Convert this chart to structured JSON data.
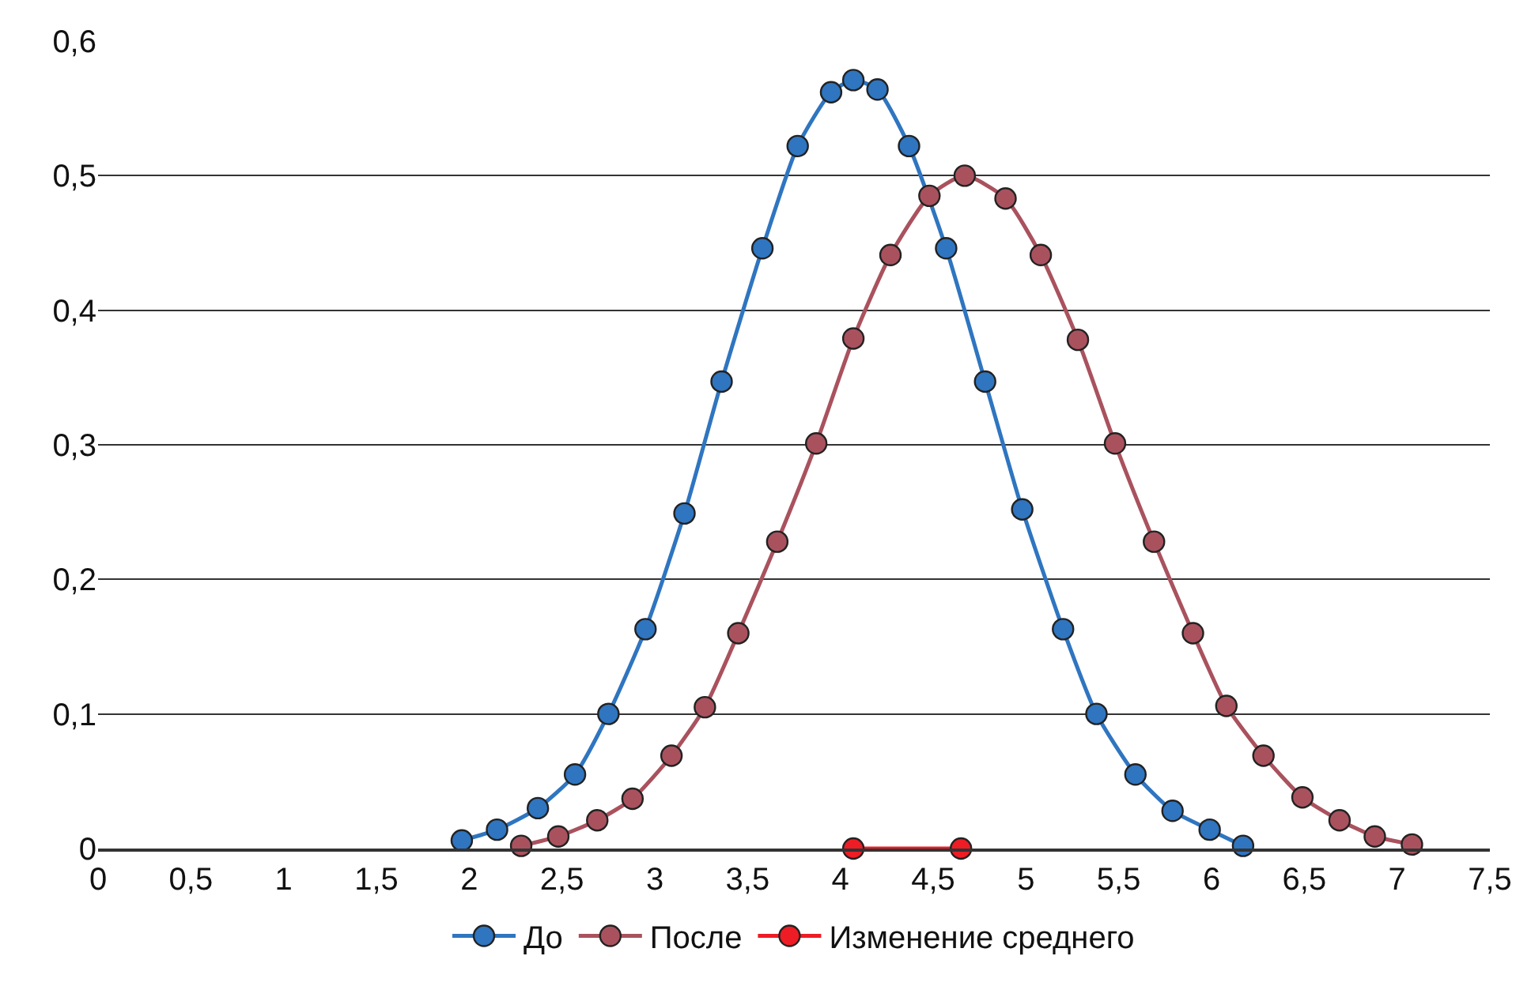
{
  "chart_data": {
    "type": "line",
    "xlim": [
      0,
      7.5
    ],
    "ylim": [
      0,
      0.6
    ],
    "xticks": [
      0,
      {
        "value": 0.5,
        "label": "0,5"
      },
      1,
      {
        "value": 1.5,
        "label": "1,5"
      },
      2,
      {
        "value": 2.5,
        "label": "2,5"
      },
      3,
      {
        "value": 3.5,
        "label": "3,5"
      },
      4,
      {
        "value": 4.5,
        "label": "4,5"
      },
      5,
      {
        "value": 5.5,
        "label": "5,5"
      },
      6,
      {
        "value": 6.5,
        "label": "6,5"
      },
      7,
      {
        "value": 7.5,
        "label": "7,5"
      }
    ],
    "yticks": [
      0,
      {
        "value": 0.1,
        "label": "0,1"
      },
      {
        "value": 0.2,
        "label": "0,2"
      },
      {
        "value": 0.3,
        "label": "0,3"
      },
      {
        "value": 0.4,
        "label": "0,4"
      },
      {
        "value": 0.5,
        "label": "0,5"
      },
      {
        "value": 0.6,
        "label": "0,6"
      }
    ],
    "grid": "y",
    "legend": "bottom",
    "marker": "circle",
    "line_style": "solid",
    "series": [
      {
        "name": "До",
        "color": "#2f75c0",
        "x": [
          1.96,
          2.15,
          2.37,
          2.57,
          2.75,
          2.95,
          3.16,
          3.36,
          3.58,
          3.77,
          3.95,
          4.07,
          4.2,
          4.37,
          4.57,
          4.78,
          4.98,
          5.2,
          5.38,
          5.59,
          5.79,
          5.99,
          6.17
        ],
        "values": [
          0.006,
          0.014,
          0.03,
          0.055,
          0.1,
          0.163,
          0.249,
          0.347,
          0.446,
          0.522,
          0.562,
          0.571,
          0.564,
          0.522,
          0.446,
          0.347,
          0.252,
          0.163,
          0.1,
          0.055,
          0.028,
          0.014,
          0.002
        ]
      },
      {
        "name": "После",
        "color": "#a9525e",
        "x": [
          2.28,
          2.48,
          2.69,
          2.88,
          3.09,
          3.27,
          3.45,
          3.66,
          3.87,
          4.07,
          4.27,
          4.48,
          4.67,
          4.89,
          5.08,
          5.28,
          5.48,
          5.69,
          5.9,
          6.08,
          6.28,
          6.49,
          6.69,
          6.88,
          7.08
        ],
        "values": [
          0.002,
          0.009,
          0.021,
          0.037,
          0.069,
          0.105,
          0.16,
          0.228,
          0.301,
          0.379,
          0.441,
          0.485,
          0.5,
          0.483,
          0.441,
          0.378,
          0.301,
          0.228,
          0.16,
          0.106,
          0.069,
          0.038,
          0.021,
          0.009,
          0.003
        ]
      },
      {
        "name": "Изменение среднего",
        "color": "#ee1c25",
        "x": [
          4.07,
          4.65
        ],
        "values": [
          0,
          0
        ]
      }
    ]
  }
}
